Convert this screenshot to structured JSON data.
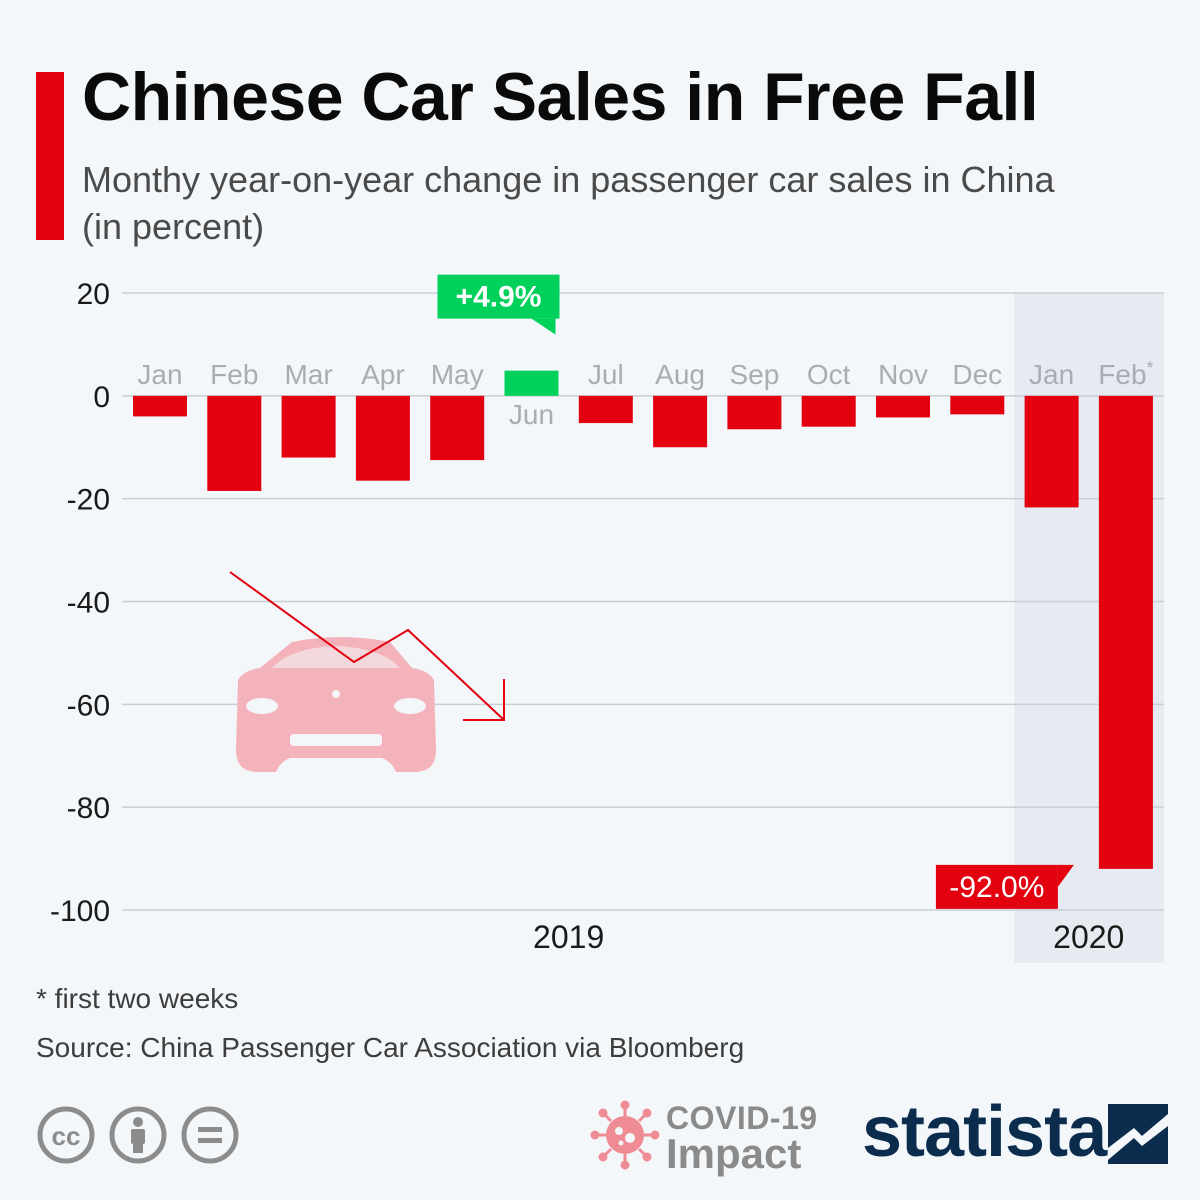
{
  "header": {
    "title": "Chinese Car Sales in Free Fall",
    "subtitle": "Monthy year-on-year change in passenger car sales in China (in percent)"
  },
  "colors": {
    "negative": "#e3000f",
    "positive": "#00d15a",
    "accent": "#e3000f",
    "highlight_band": "#e6ebf2",
    "car_illustration": "#f4b3bb",
    "brand": "#0c2c4e"
  },
  "chart_data": {
    "type": "bar",
    "categories": [
      "Jan",
      "Feb",
      "Mar",
      "Apr",
      "May",
      "Jun",
      "Jul",
      "Aug",
      "Sep",
      "Oct",
      "Nov",
      "Dec",
      "Jan",
      "Feb*"
    ],
    "values": [
      -4.0,
      -18.5,
      -12.0,
      -16.5,
      -12.5,
      4.9,
      -5.3,
      -10.0,
      -6.5,
      -6.0,
      -4.2,
      -3.6,
      -21.7,
      -92.0
    ],
    "year_groups": [
      {
        "label": "2019",
        "from": 0,
        "to": 11
      },
      {
        "label": "2020",
        "from": 12,
        "to": 13
      }
    ],
    "highlighted_group": "2020",
    "ylim": [
      -100,
      20
    ],
    "yticks": [
      20,
      0,
      -20,
      -40,
      -60,
      -80,
      -100
    ],
    "grid": true,
    "callouts": [
      {
        "index": 5,
        "text": "+4.9%"
      },
      {
        "index": 13,
        "text": "-92.0%"
      }
    ]
  },
  "footer": {
    "footnote": "* first two weeks",
    "source": "Source: China Passenger Car Association via Bloomberg",
    "covid_line1": "COVID-19",
    "covid_line2": "Impact",
    "brand": "statista"
  },
  "icons": {
    "license": [
      "cc-icon",
      "attribution-icon",
      "no-derivatives-icon"
    ],
    "illustration": "car-icon",
    "trend": "down-trend-arrow-icon",
    "covid": "virus-icon",
    "brand_mark": "statista-logo-icon"
  }
}
